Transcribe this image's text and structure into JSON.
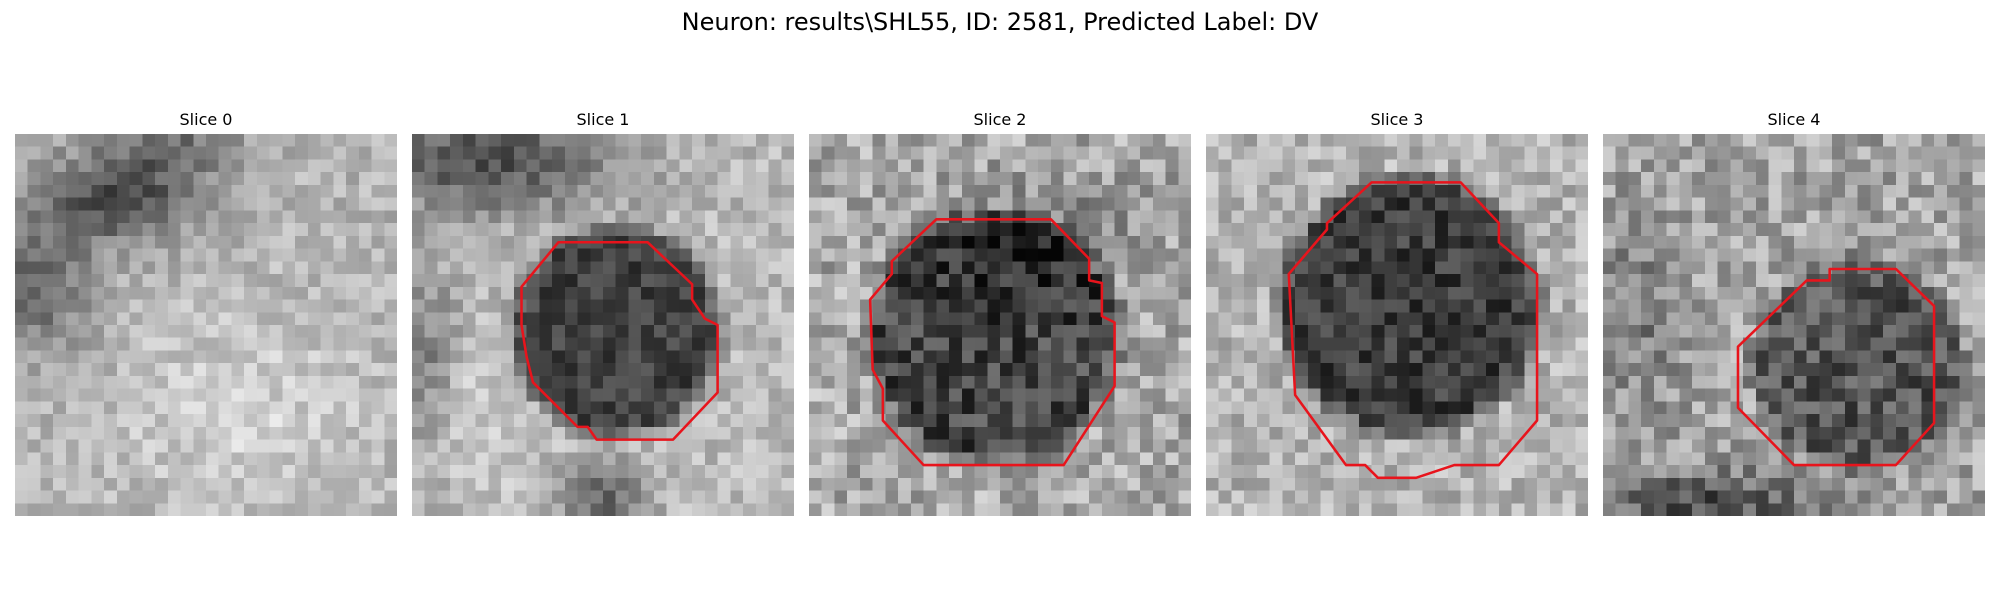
{
  "figure": {
    "title": "Neuron: results\\SHL55, ID: 2581, Predicted Label: DV"
  },
  "panels": [
    {
      "title": "Slice 0"
    },
    {
      "title": "Slice 1"
    },
    {
      "title": "Slice 2"
    },
    {
      "title": "Slice 3"
    },
    {
      "title": "Slice 4"
    }
  ],
  "colors": {
    "contour": "#e8141c",
    "background": "#ffffff"
  }
}
